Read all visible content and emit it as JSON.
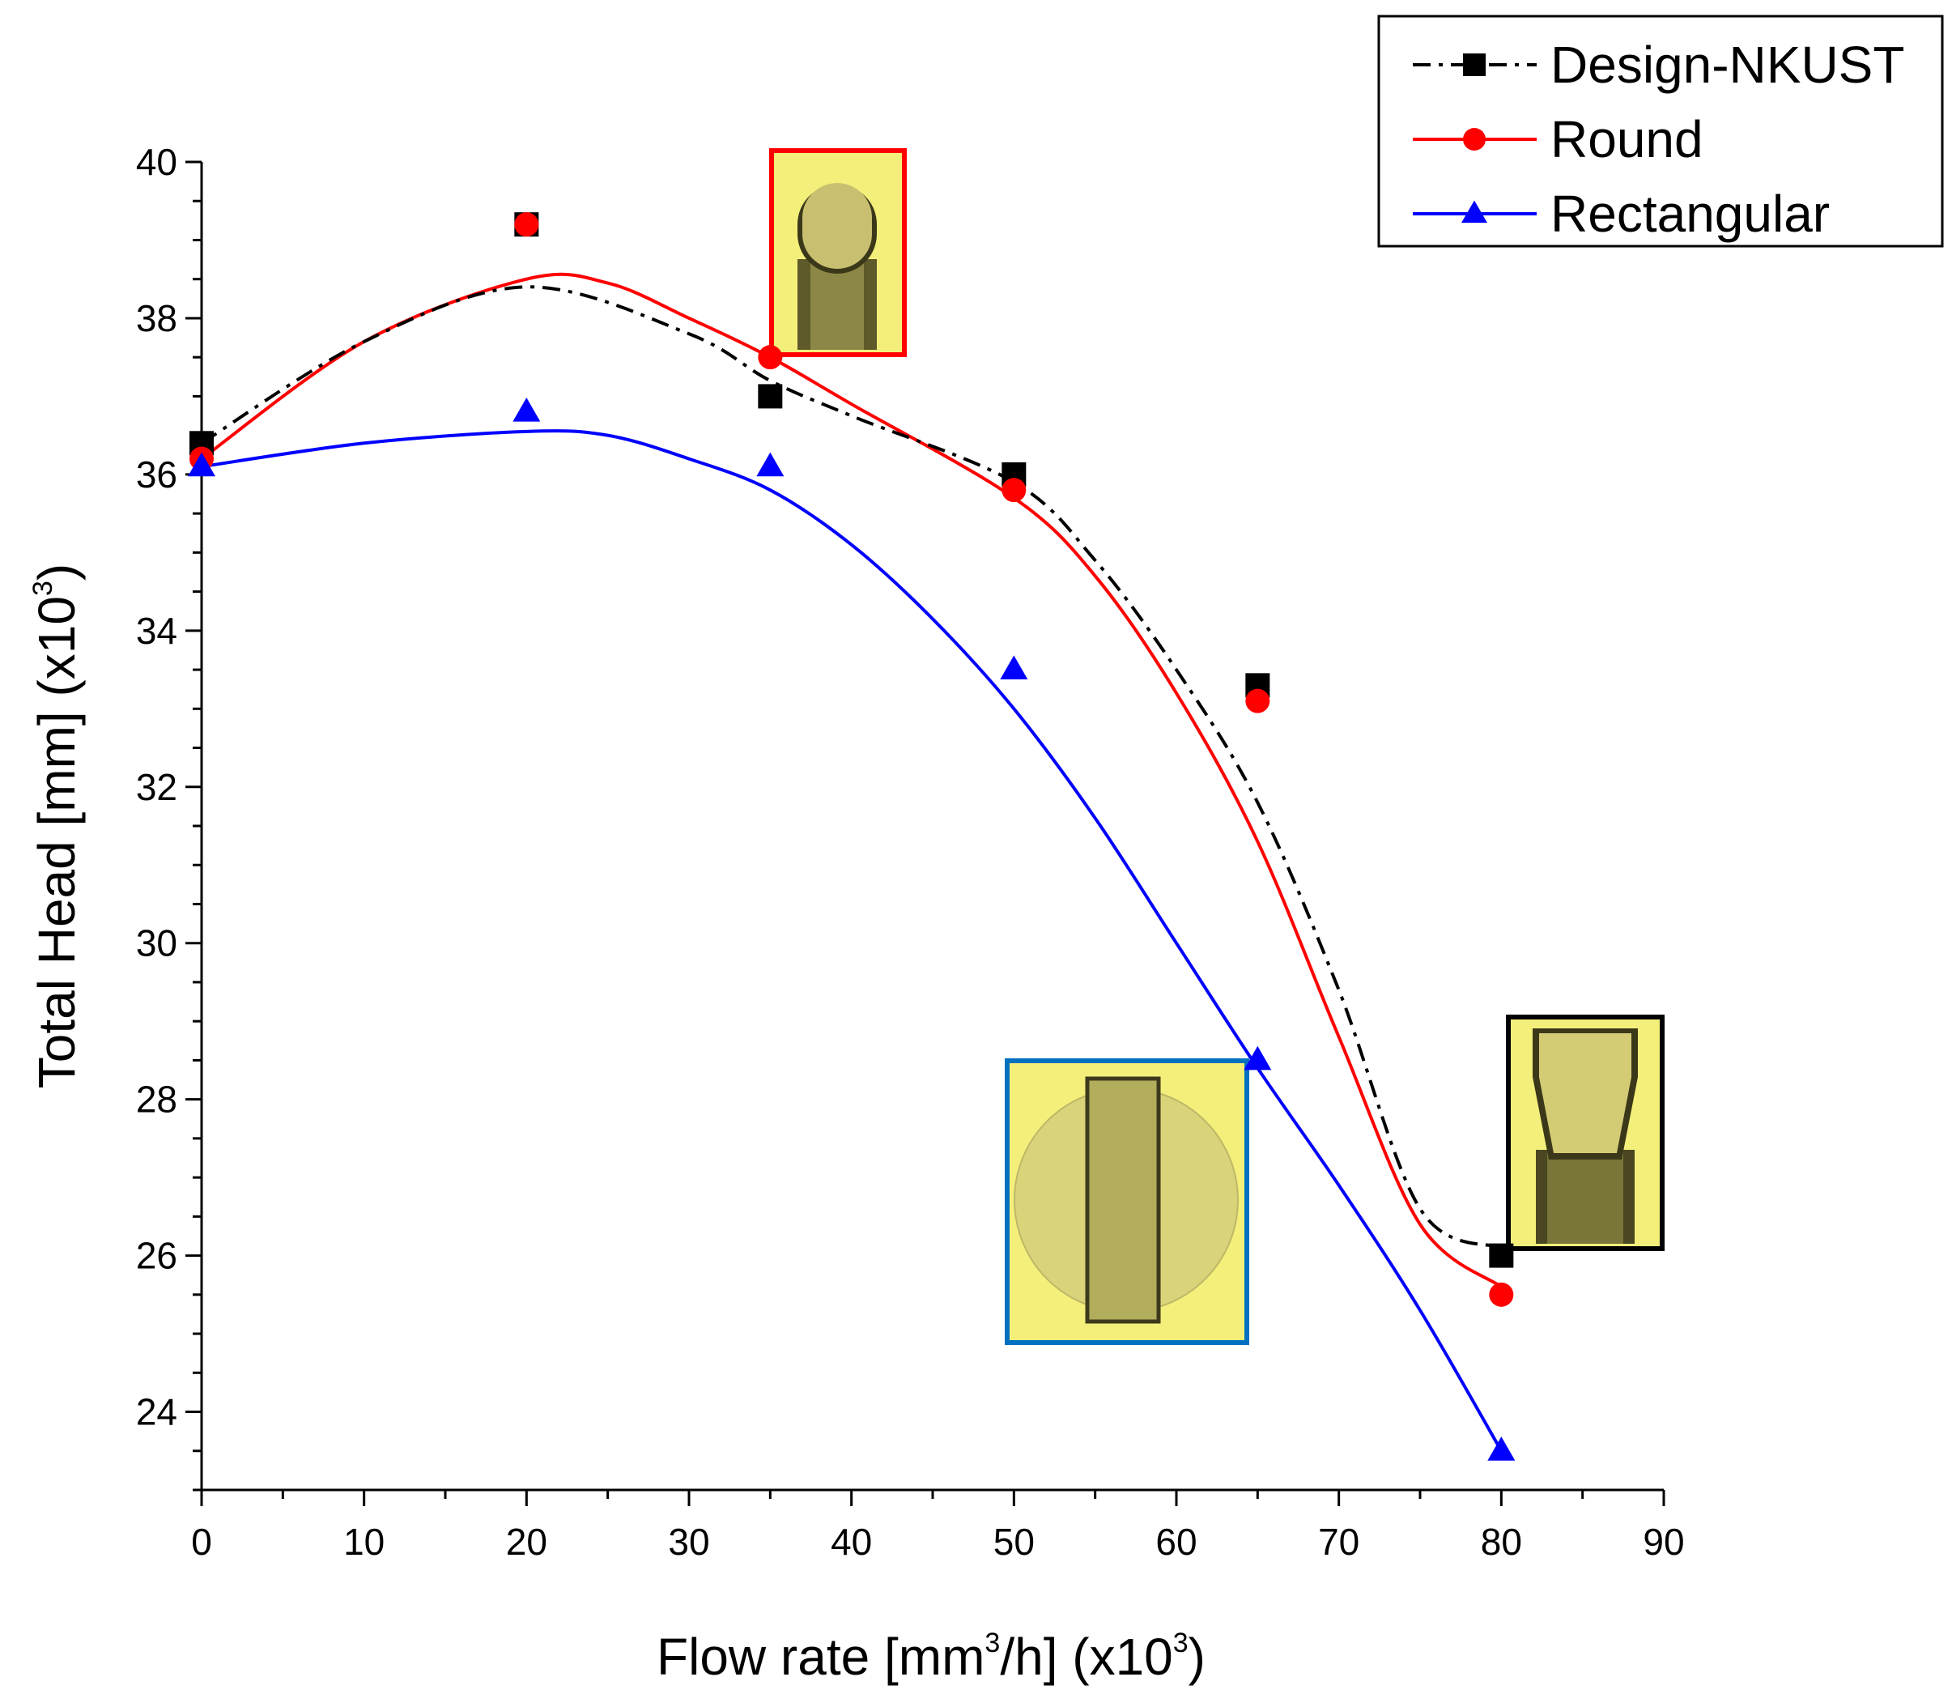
{
  "chart_data": {
    "type": "line",
    "title": "",
    "xlabel": {
      "main": "Flow rate [mm",
      "sup1": "3",
      "mid": "/h] (x10",
      "sup2": "3",
      "end": ")"
    },
    "ylabel": {
      "main": "Total Head [mm] (x10",
      "sup": "3",
      "end": ")"
    },
    "xlim": [
      0,
      90
    ],
    "ylim": [
      23,
      40
    ],
    "xticks": [
      0,
      10,
      20,
      30,
      40,
      50,
      60,
      70,
      80,
      90
    ],
    "yticks": [
      24,
      26,
      28,
      30,
      32,
      34,
      36,
      38,
      40
    ],
    "grid": false,
    "legend_position": "top-right",
    "x": [
      0,
      20,
      35,
      50,
      65,
      80
    ],
    "series": [
      {
        "name": "Design-NKUST",
        "color": "#000000",
        "marker": "square",
        "line_style": "dash-dot",
        "values": [
          36.4,
          39.2,
          37.0,
          36.0,
          33.3,
          26.0
        ],
        "fit_points": [
          [
            0,
            36.4
          ],
          [
            10,
            37.7
          ],
          [
            20,
            38.4
          ],
          [
            30,
            37.8
          ],
          [
            35,
            37.2
          ],
          [
            40,
            36.75
          ],
          [
            50,
            35.9
          ],
          [
            55,
            34.9
          ],
          [
            60,
            33.5
          ],
          [
            65,
            31.8
          ],
          [
            70,
            29.4
          ],
          [
            75,
            26.6
          ],
          [
            80,
            26.1
          ]
        ]
      },
      {
        "name": "Round",
        "color": "#ff0000",
        "marker": "circle",
        "line_style": "solid",
        "values": [
          36.2,
          39.2,
          37.5,
          35.8,
          33.1,
          25.5
        ],
        "fit_points": [
          [
            0,
            36.2
          ],
          [
            10,
            37.7
          ],
          [
            20,
            38.5
          ],
          [
            25,
            38.45
          ],
          [
            30,
            38.0
          ],
          [
            35,
            37.5
          ],
          [
            40,
            36.9
          ],
          [
            50,
            35.7
          ],
          [
            55,
            34.7
          ],
          [
            60,
            33.2
          ],
          [
            65,
            31.3
          ],
          [
            70,
            28.8
          ],
          [
            75,
            26.4
          ],
          [
            80,
            25.6
          ]
        ]
      },
      {
        "name": "Rectangular",
        "color": "#0000ff",
        "marker": "triangle",
        "line_style": "solid",
        "values": [
          36.1,
          36.8,
          36.1,
          33.5,
          28.5,
          23.5
        ],
        "fit_points": [
          [
            0,
            36.1
          ],
          [
            10,
            36.4
          ],
          [
            20,
            36.55
          ],
          [
            25,
            36.5
          ],
          [
            30,
            36.2
          ],
          [
            35,
            35.8
          ],
          [
            40,
            35.1
          ],
          [
            45,
            34.15
          ],
          [
            50,
            33.0
          ],
          [
            55,
            31.6
          ],
          [
            60,
            30.0
          ],
          [
            65,
            28.4
          ],
          [
            70,
            26.9
          ],
          [
            75,
            25.3
          ],
          [
            80,
            23.5
          ]
        ]
      }
    ],
    "insets": [
      {
        "name": "round-profile-inset",
        "border_color": "#ff0000",
        "kind": "round",
        "near_x": 35
      },
      {
        "name": "rectangular-profile-inset",
        "border_color": "#0070c0",
        "kind": "rectangular",
        "near_x": 57
      },
      {
        "name": "design-profile-inset",
        "border_color": "#000000",
        "kind": "design",
        "near_x": 80
      }
    ]
  }
}
